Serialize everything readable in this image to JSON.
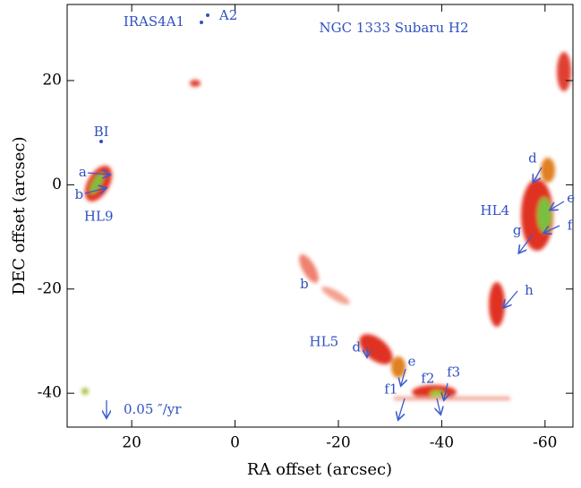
{
  "chart_data": {
    "type": "image",
    "title": "NGC 1333 Subaru H2",
    "xlabel": "RA offset (arcsec)",
    "ylabel": "DEC offset (arcsec)",
    "xlim": [
      32.5,
      -65.4
    ],
    "ylim": [
      -46.5,
      34.6
    ],
    "xticks": [
      20,
      0,
      -20,
      -40,
      -60
    ],
    "yticks": [
      20,
      0,
      -20,
      -40
    ],
    "annotations": [
      {
        "text": "IRAS4A1",
        "x": 15.7,
        "y": 31.2
      },
      {
        "text": "A2",
        "x": 1.3,
        "y": 32.4
      },
      {
        "text": "BI",
        "x": 25.9,
        "y": 10
      },
      {
        "text": "a",
        "x": 29.5,
        "y": 2.3
      },
      {
        "text": "b",
        "x": 30.2,
        "y": -2.0
      },
      {
        "text": "HL9",
        "x": 26.4,
        "y": -6.2
      },
      {
        "text": "d",
        "x": -57.6,
        "y": 5.0
      },
      {
        "text": "e",
        "x": -65.0,
        "y": -2.7
      },
      {
        "text": "HL4",
        "x": -50.3,
        "y": -5.1
      },
      {
        "text": "f",
        "x": -64.8,
        "y": -7.9
      },
      {
        "text": "g",
        "x": -54.6,
        "y": -8.9
      },
      {
        "text": "h",
        "x": -56.9,
        "y": -20.4
      },
      {
        "text": "b",
        "x": -13.4,
        "y": -19.2
      },
      {
        "text": "HL5",
        "x": -17.2,
        "y": -30.3
      },
      {
        "text": "d",
        "x": -23.5,
        "y": -31.3
      },
      {
        "text": "e",
        "x": -34.2,
        "y": -34.0
      },
      {
        "text": "f1",
        "x": -30.2,
        "y": -39.4
      },
      {
        "text": "f2",
        "x": -37.3,
        "y": -37.3
      },
      {
        "text": "f3",
        "x": -42.3,
        "y": -36.1
      },
      {
        "text": "0.05 ″/yr",
        "x": 16,
        "y": -43.2
      }
    ]
  }
}
